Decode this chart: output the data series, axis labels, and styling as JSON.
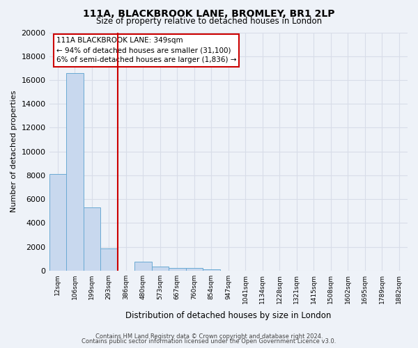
{
  "title": "111A, BLACKBROOK LANE, BROMLEY, BR1 2LP",
  "subtitle": "Size of property relative to detached houses in London",
  "xlabel": "Distribution of detached houses by size in London",
  "ylabel": "Number of detached properties",
  "bar_labels": [
    "12sqm",
    "106sqm",
    "199sqm",
    "293sqm",
    "386sqm",
    "480sqm",
    "573sqm",
    "667sqm",
    "760sqm",
    "854sqm",
    "947sqm",
    "1041sqm",
    "1134sqm",
    "1228sqm",
    "1321sqm",
    "1415sqm",
    "1508sqm",
    "1602sqm",
    "1695sqm",
    "1789sqm",
    "1882sqm"
  ],
  "bar_heights": [
    8100,
    16600,
    5300,
    1850,
    0,
    750,
    350,
    250,
    200,
    100,
    0,
    0,
    0,
    0,
    0,
    0,
    0,
    0,
    0,
    0,
    0
  ],
  "bar_color": "#c8d8ee",
  "bar_edgecolor": "#6aaad4",
  "red_line_x": 3.5,
  "annotation_title": "111A BLACKBROOK LANE: 349sqm",
  "annotation_line1": "← 94% of detached houses are smaller (31,100)",
  "annotation_line2": "6% of semi-detached houses are larger (1,836) →",
  "annotation_box_color": "#ffffff",
  "annotation_box_edgecolor": "#cc0000",
  "vline_color": "#cc0000",
  "ylim": [
    0,
    20000
  ],
  "yticks": [
    0,
    2000,
    4000,
    6000,
    8000,
    10000,
    12000,
    14000,
    16000,
    18000,
    20000
  ],
  "footer1": "Contains HM Land Registry data © Crown copyright and database right 2024.",
  "footer2": "Contains public sector information licensed under the Open Government Licence v3.0.",
  "background_color": "#eef2f8",
  "grid_color": "#d8dde8",
  "plot_bg_color": "#eef2f8"
}
